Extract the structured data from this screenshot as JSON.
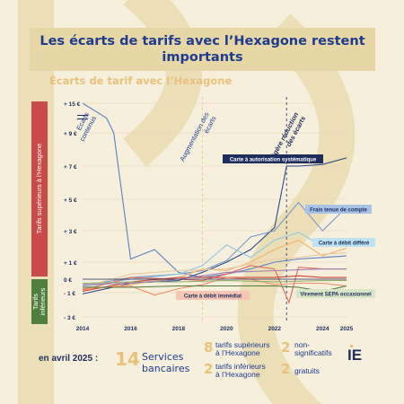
{
  "header": {
    "title": "Les écarts de tarifs avec l’Hexagone restent importants",
    "subtitle": "Écarts de tarif avec l’Hexagone"
  },
  "side_labels": {
    "superieurs": "Tarifs supérieurs à l'Hexagone",
    "inferieurs": "Tarifs inférieurs"
  },
  "chart_data": {
    "type": "line",
    "x_ticks": [
      2014,
      2016,
      2018,
      2020,
      2022,
      2024,
      2025
    ],
    "y_ticks": [
      {
        "value": 15,
        "label": "+ 15 €"
      },
      {
        "value": 9,
        "label": "+ 9 €"
      },
      {
        "value": 7,
        "label": "+ 7 €"
      },
      {
        "value": 5,
        "label": "+ 5 €"
      },
      {
        "value": 3,
        "label": "+ 3 €"
      },
      {
        "value": 1,
        "label": "+ 1 €"
      },
      {
        "value": 0,
        "label": "0 €"
      },
      {
        "value": -1,
        "label": "- 1 €"
      },
      {
        "value": -3,
        "label": "- 3 €"
      }
    ],
    "axis_break_between": [
      9,
      15
    ],
    "periods": [
      {
        "label": "Ecarts contenus",
        "start": 2014,
        "end": 2019
      },
      {
        "label": "Augmentation des écarts",
        "start": 2019,
        "end": 2022.5
      },
      {
        "label": "Légère réduction des écarts",
        "start": 2022.5,
        "end": 2025
      }
    ],
    "series": [
      {
        "color": "#5b7fc0",
        "x": [
          2014,
          2015,
          2015.3,
          2016,
          2017,
          2018,
          2019,
          2020,
          2021,
          2022,
          2023,
          2024,
          2025
        ],
        "y": [
          15,
          12,
          9,
          1.2,
          1.8,
          0.4,
          0.1,
          0.3,
          0.6,
          1.0,
          1.2,
          1.3,
          1.4
        ]
      },
      {
        "name": "Carte à autorisation systématique",
        "color": "#2e4a86",
        "x": [
          2014,
          2016,
          2018,
          2019,
          2020,
          2021,
          2022,
          2022.5,
          2023,
          2024,
          2025
        ],
        "y": [
          -1.1,
          -0.3,
          -0.1,
          0.4,
          1.0,
          1.8,
          3.2,
          7.0,
          7.0,
          7.1,
          7.5
        ]
      },
      {
        "name": "Frais tenue de compte",
        "color": "#7a98cc",
        "x": [
          2014,
          2016,
          2018,
          2019,
          2020,
          2021,
          2022,
          2023,
          2024,
          2025
        ],
        "y": [
          -0.5,
          0.1,
          0.3,
          0.5,
          1.1,
          2.6,
          3.0,
          4.8,
          3.0,
          4.5
        ]
      },
      {
        "name": "Carte à débit différé",
        "color": "#8ec8e0",
        "x": [
          2014,
          2016,
          2018,
          2019,
          2020,
          2021,
          2022,
          2023,
          2024,
          2025
        ],
        "y": [
          -0.6,
          0.0,
          0.3,
          0.8,
          2.1,
          1.3,
          2.4,
          2.9,
          2.0,
          2.3
        ]
      },
      {
        "color": "#f2b36e",
        "x": [
          2014,
          2016,
          2018,
          2019,
          2020,
          2021,
          2022,
          2023,
          2024,
          2025
        ],
        "y": [
          -0.8,
          -0.4,
          0.1,
          0.6,
          0.5,
          1.0,
          1.8,
          2.4,
          1.4,
          1.9
        ]
      },
      {
        "color": "#e7c9a0",
        "x": [
          2014,
          2016,
          2018,
          2020,
          2021,
          2022,
          2023,
          2024,
          2025
        ],
        "y": [
          -0.6,
          0.3,
          0.5,
          0.6,
          0.9,
          1.2,
          1.3,
          1.5,
          1.6
        ]
      },
      {
        "color": "#e06a5c",
        "x": [
          2014,
          2016,
          2018,
          2019,
          2020,
          2021,
          2022,
          2022.6,
          2023,
          2024,
          2025
        ],
        "y": [
          -0.8,
          0.1,
          0.0,
          -0.1,
          0.3,
          0.8,
          0.6,
          -1.8,
          0.7,
          0.6,
          0.6
        ]
      },
      {
        "color": "#c8453b",
        "x": [
          2014,
          2016,
          2018,
          2020,
          2022,
          2023,
          2024,
          2025
        ],
        "y": [
          -0.9,
          -0.2,
          0.1,
          0.1,
          0.1,
          0.2,
          0.1,
          0.1
        ]
      },
      {
        "name": "Carte à débit immédiat",
        "color": "#f08c6a",
        "x": [
          2014,
          2016,
          2017,
          2018,
          2019,
          2020,
          2021,
          2022,
          2023,
          2024,
          2025
        ],
        "y": [
          -0.7,
          -0.5,
          -1.2,
          -0.7,
          -0.4,
          0.1,
          0.0,
          -0.4,
          -0.3,
          -0.3,
          -0.5
        ]
      },
      {
        "name": "Virement SEPA occasionnel",
        "color": "#4e7a3c",
        "x": [
          2014,
          2016,
          2018,
          2020,
          2022,
          2023,
          2024,
          2025
        ],
        "y": [
          -0.6,
          -0.6,
          -0.5,
          -0.5,
          -0.5,
          -0.6,
          -0.9,
          -0.5
        ]
      },
      {
        "color": "#8fae6a",
        "x": [
          2014,
          2016,
          2018,
          2020,
          2022,
          2024,
          2025
        ],
        "y": [
          -0.3,
          -0.2,
          -0.2,
          -0.1,
          -0.2,
          -0.1,
          -0.1
        ]
      },
      {
        "color": "#a07bb0",
        "x": [
          2014,
          2016,
          2018,
          2020,
          2022,
          2024,
          2025
        ],
        "y": [
          -0.4,
          -0.3,
          0.0,
          0.4,
          0.5,
          0.6,
          0.6
        ]
      }
    ]
  },
  "footer": {
    "lead": "en avril 2025 :",
    "total_num": "14",
    "total_label_1": "Services",
    "total_label_2": "bancaires",
    "sup_num": "8",
    "sup_label_1": "tarifs supérieurs",
    "sup_label_2": "à l’Hexagone",
    "inf_num": "2",
    "inf_label_1": "tarifs inférieurs",
    "inf_label_2": "à l’Hexagone",
    "ns_num": "2",
    "ns_label_1": "non-",
    "ns_label_2": "significatifs",
    "gr_num": "2",
    "gr_label": "gratuits",
    "logo": "IE"
  }
}
